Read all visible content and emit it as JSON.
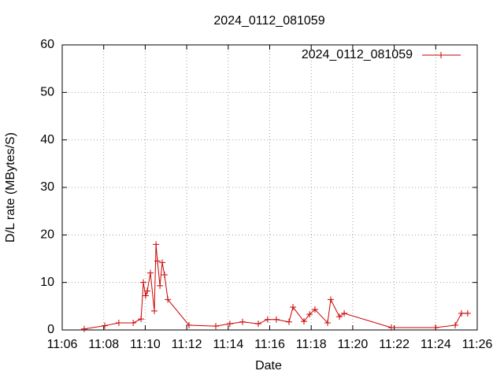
{
  "chart_data": {
    "type": "line",
    "title": "2024_0112_081059",
    "x_label": "Date",
    "y_label": "D/L rate (MBytes/S)",
    "x": [
      667.06,
      668.05,
      668.73,
      669.42,
      669.8,
      669.91,
      670.02,
      670.1,
      670.25,
      670.44,
      670.52,
      670.59,
      670.71,
      670.82,
      670.93,
      671.09,
      672.11,
      673.4,
      674.08,
      674.69,
      675.45,
      675.9,
      676.32,
      676.93,
      677.12,
      677.65,
      677.92,
      678.18,
      678.79,
      678.94,
      679.36,
      679.59,
      681.86,
      683.99,
      684.94,
      685.24,
      685.54
    ],
    "series": [
      {
        "name": "2024_0112_081059",
        "color": "#cc0000",
        "values": [
          0.2,
          0.9,
          1.5,
          1.5,
          2.3,
          10,
          7.2,
          8.2,
          12,
          4,
          18,
          14.5,
          9.3,
          14.2,
          11.6,
          6.4,
          1,
          0.8,
          1.3,
          1.7,
          1.3,
          2.2,
          2.2,
          1.7,
          4.8,
          1.8,
          3.3,
          4.3,
          1.5,
          6.4,
          2.8,
          3.5,
          0.5,
          0.5,
          1,
          3.5,
          3.5
        ]
      }
    ],
    "xlim": [
      666,
      686
    ],
    "xticks": [
      {
        "value": 666,
        "label": "11:06"
      },
      {
        "value": 668,
        "label": "11:08"
      },
      {
        "value": 670,
        "label": "11:10"
      },
      {
        "value": 672,
        "label": "11:12"
      },
      {
        "value": 674,
        "label": "11:14"
      },
      {
        "value": 676,
        "label": "11:16"
      },
      {
        "value": 678,
        "label": "11:18"
      },
      {
        "value": 680,
        "label": "11:20"
      },
      {
        "value": 682,
        "label": "11:22"
      },
      {
        "value": 684,
        "label": "11:24"
      },
      {
        "value": 686,
        "label": "11:26"
      }
    ],
    "ylim": [
      0,
      60
    ],
    "yticks": [
      0,
      10,
      20,
      30,
      40,
      50,
      60
    ],
    "grid": true,
    "legend": "top-right",
    "markers": "plus"
  }
}
